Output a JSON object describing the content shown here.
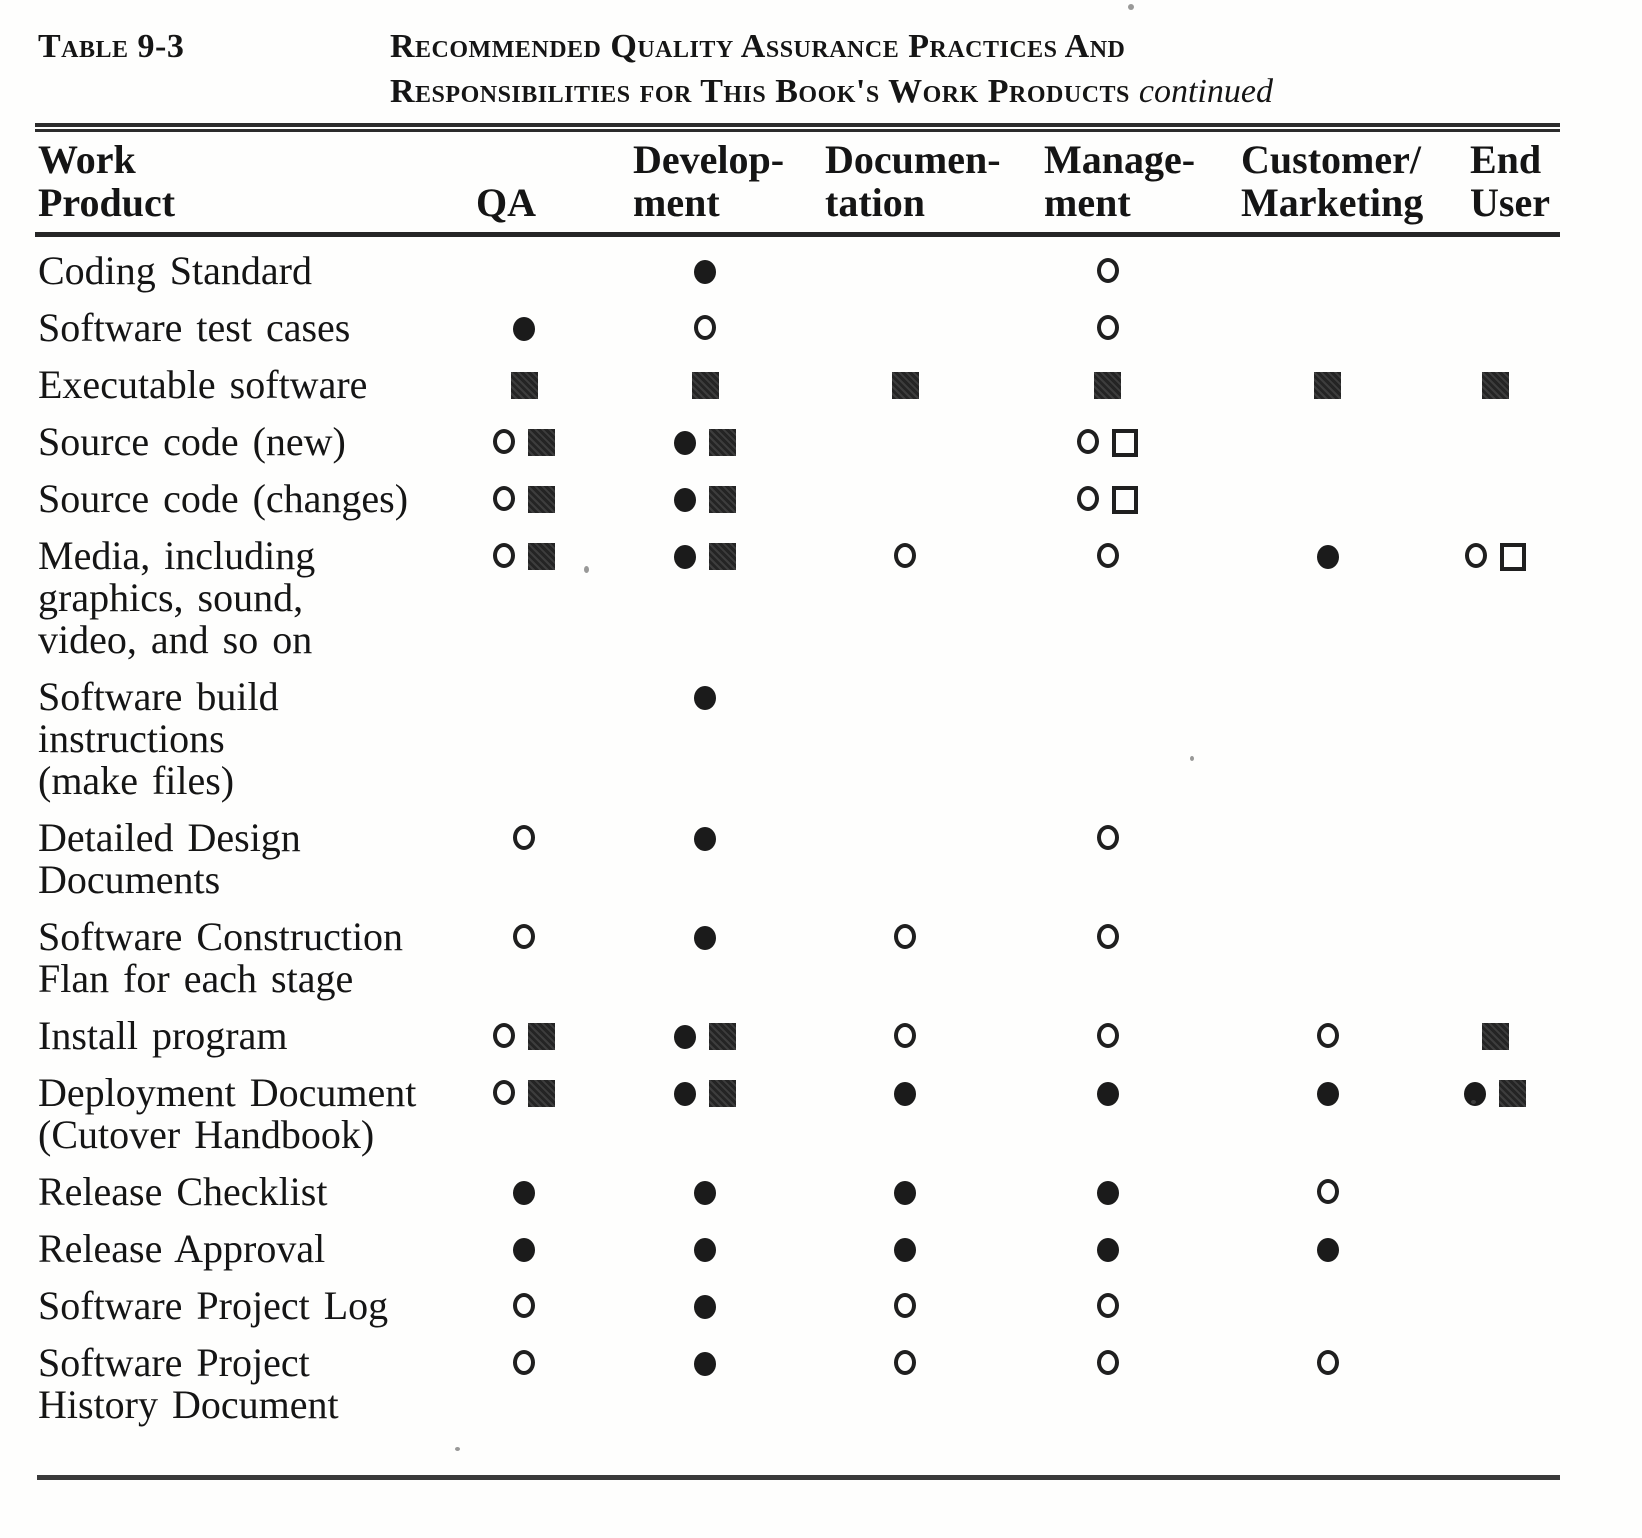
{
  "caption": {
    "label": "Table 9-3",
    "title_line1": "Recommended Quality Assurance Practices And",
    "title_line2": "Responsibilities for This Book's Work Products",
    "continued": "continued"
  },
  "table": {
    "header": {
      "work_product": [
        "Work",
        "Product"
      ],
      "qa": [
        "QA"
      ],
      "development": [
        "Develop-",
        "ment"
      ],
      "documentation": [
        "Documen-",
        "tation"
      ],
      "management": [
        "Manage-",
        "ment"
      ],
      "customer_marketing": [
        "Customer/",
        "Marketing"
      ],
      "end_user": [
        "End",
        "User"
      ]
    },
    "symbols_legend": {
      "filled-circle": "●",
      "open-circle": "○",
      "filled-square": "■",
      "open-square": "□"
    },
    "rows": [
      {
        "label_lines": [
          "Coding Standard"
        ],
        "qa": [],
        "development": [
          "filled-circle"
        ],
        "documentation": [],
        "management": [
          "open-circle"
        ],
        "customer_marketing": [],
        "end_user": []
      },
      {
        "label_lines": [
          "Software test cases"
        ],
        "qa": [
          "filled-circle"
        ],
        "development": [
          "open-circle"
        ],
        "documentation": [],
        "management": [
          "open-circle"
        ],
        "customer_marketing": [],
        "end_user": []
      },
      {
        "label_lines": [
          "Executable software"
        ],
        "qa": [
          "filled-square"
        ],
        "development": [
          "filled-square"
        ],
        "documentation": [
          "filled-square"
        ],
        "management": [
          "filled-square"
        ],
        "customer_marketing": [
          "filled-square"
        ],
        "end_user": [
          "filled-square"
        ]
      },
      {
        "label_lines": [
          "Source code (new)"
        ],
        "qa": [
          "open-circle",
          "filled-square"
        ],
        "development": [
          "filled-circle",
          "filled-square"
        ],
        "documentation": [],
        "management": [
          "open-circle",
          "open-square"
        ],
        "customer_marketing": [],
        "end_user": []
      },
      {
        "label_lines": [
          "Source code (changes)"
        ],
        "qa": [
          "open-circle",
          "filled-square"
        ],
        "development": [
          "filled-circle",
          "filled-square"
        ],
        "documentation": [],
        "management": [
          "open-circle",
          "open-square"
        ],
        "customer_marketing": [],
        "end_user": []
      },
      {
        "label_lines": [
          "Media, including",
          "graphics, sound,",
          "video, and so on"
        ],
        "qa": [
          "open-circle",
          "filled-square"
        ],
        "development": [
          "filled-circle",
          "filled-square"
        ],
        "documentation": [
          "open-circle"
        ],
        "management": [
          "open-circle"
        ],
        "customer_marketing": [
          "filled-circle"
        ],
        "end_user": [
          "open-circle",
          "open-square"
        ]
      },
      {
        "label_lines": [
          "Software build",
          "instructions",
          "(make files)"
        ],
        "qa": [],
        "development": [
          "filled-circle"
        ],
        "documentation": [],
        "management": [],
        "customer_marketing": [],
        "end_user": []
      },
      {
        "label_lines": [
          "Detailed Design",
          "Documents"
        ],
        "qa": [
          "open-circle"
        ],
        "development": [
          "filled-circle"
        ],
        "documentation": [],
        "management": [
          "open-circle"
        ],
        "customer_marketing": [],
        "end_user": []
      },
      {
        "label_lines": [
          "Software Construction",
          "Flan for each stage"
        ],
        "qa": [
          "open-circle"
        ],
        "development": [
          "filled-circle"
        ],
        "documentation": [
          "open-circle"
        ],
        "management": [
          "open-circle"
        ],
        "customer_marketing": [],
        "end_user": []
      },
      {
        "label_lines": [
          "Install program"
        ],
        "qa": [
          "open-circle",
          "filled-square"
        ],
        "development": [
          "filled-circle",
          "filled-square"
        ],
        "documentation": [
          "open-circle"
        ],
        "management": [
          "open-circle"
        ],
        "customer_marketing": [
          "open-circle"
        ],
        "end_user": [
          "filled-square"
        ]
      },
      {
        "label_lines": [
          "Deployment Document",
          "(Cutover Handbook)"
        ],
        "qa": [
          "open-circle",
          "filled-square"
        ],
        "development": [
          "filled-circle",
          "filled-square"
        ],
        "documentation": [
          "filled-circle"
        ],
        "management": [
          "filled-circle"
        ],
        "customer_marketing": [
          "filled-circle"
        ],
        "end_user": [
          "filled-circle",
          "filled-square"
        ]
      },
      {
        "label_lines": [
          "Release Checklist"
        ],
        "qa": [
          "filled-circle"
        ],
        "development": [
          "filled-circle"
        ],
        "documentation": [
          "filled-circle"
        ],
        "management": [
          "filled-circle"
        ],
        "customer_marketing": [
          "open-circle"
        ],
        "end_user": []
      },
      {
        "label_lines": [
          "Release Approval"
        ],
        "qa": [
          "filled-circle"
        ],
        "development": [
          "filled-circle"
        ],
        "documentation": [
          "filled-circle"
        ],
        "management": [
          "filled-circle"
        ],
        "customer_marketing": [
          "filled-circle"
        ],
        "end_user": []
      },
      {
        "label_lines": [
          "Software Project Log"
        ],
        "qa": [
          "open-circle"
        ],
        "development": [
          "filled-circle"
        ],
        "documentation": [
          "open-circle"
        ],
        "management": [
          "open-circle"
        ],
        "customer_marketing": [],
        "end_user": []
      },
      {
        "label_lines": [
          "Software Project",
          "History Document"
        ],
        "qa": [
          "open-circle"
        ],
        "development": [
          "filled-circle"
        ],
        "documentation": [
          "open-circle"
        ],
        "management": [
          "open-circle"
        ],
        "customer_marketing": [
          "open-circle"
        ],
        "end_user": []
      }
    ]
  }
}
